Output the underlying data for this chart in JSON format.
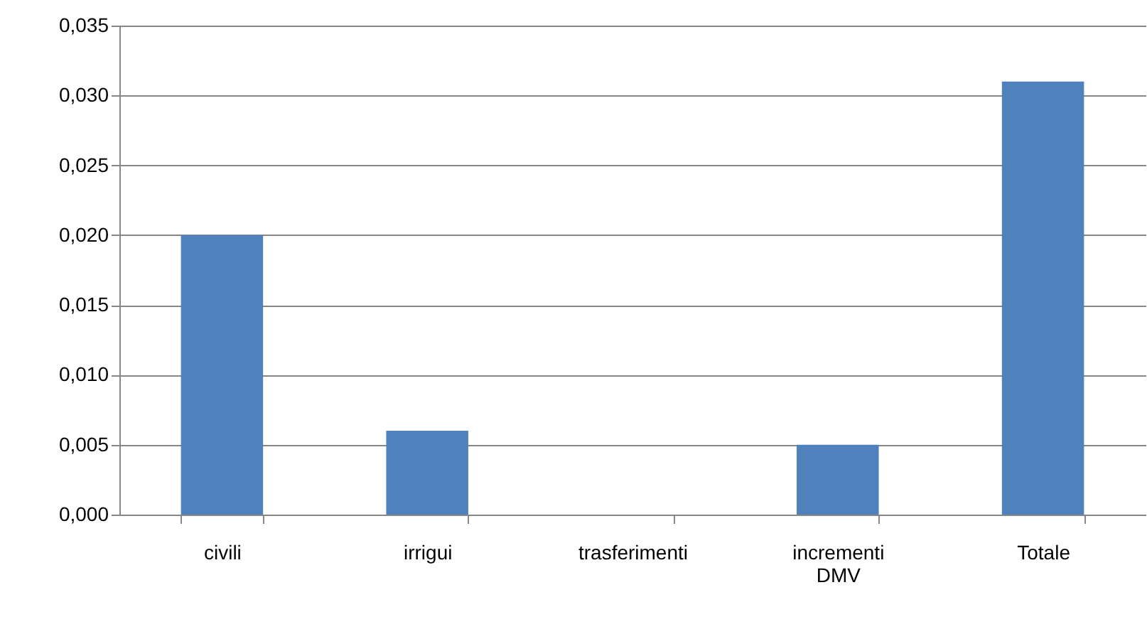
{
  "chart_data": {
    "type": "bar",
    "categories": [
      "civili",
      "irrigui",
      "trasferimenti",
      "incrementi DMV",
      "Totale"
    ],
    "values": [
      0.02,
      0.006,
      0,
      0.005,
      0.031
    ],
    "color": "#4f81bd",
    "ylim": [
      0,
      0.035
    ],
    "yticks": [
      {
        "value": 0,
        "label": "0,000"
      },
      {
        "value": 0.005,
        "label": "0,005"
      },
      {
        "value": 0.01,
        "label": "0,010"
      },
      {
        "value": 0.015,
        "label": "0,015"
      },
      {
        "value": 0.02,
        "label": "0,020"
      },
      {
        "value": 0.025,
        "label": "0,025"
      },
      {
        "value": 0.03,
        "label": "0,030"
      },
      {
        "value": 0.035,
        "label": "0,035"
      }
    ],
    "grid": "y"
  }
}
